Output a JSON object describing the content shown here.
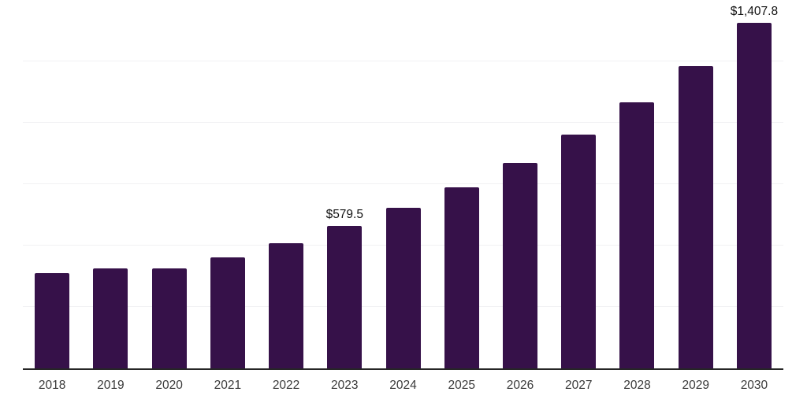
{
  "page": {
    "background": "#ffffff"
  },
  "colors": {
    "bar": "#361149",
    "axis": "#262626",
    "gridline": "#f1f1f3",
    "tick_label": "#3a3a3a",
    "data_label": "#111111"
  },
  "chart_data": {
    "type": "bar",
    "title": "",
    "xlabel": "",
    "ylabel": "",
    "categories": [
      "2018",
      "2019",
      "2020",
      "2021",
      "2022",
      "2023",
      "2024",
      "2025",
      "2026",
      "2027",
      "2028",
      "2029",
      "2030"
    ],
    "values": [
      389,
      407,
      407,
      453,
      511,
      579.5,
      654,
      737,
      835,
      951,
      1082,
      1232,
      1407.8
    ],
    "data_labels": [
      "",
      "",
      "",
      "",
      "",
      "$579.5",
      "",
      "",
      "",
      "",
      "",
      "",
      "$1,407.8"
    ],
    "ylim": [
      0,
      1500
    ],
    "grid_interval": 250,
    "grid": true,
    "legend": false,
    "y_tick_labels_visible": false
  }
}
